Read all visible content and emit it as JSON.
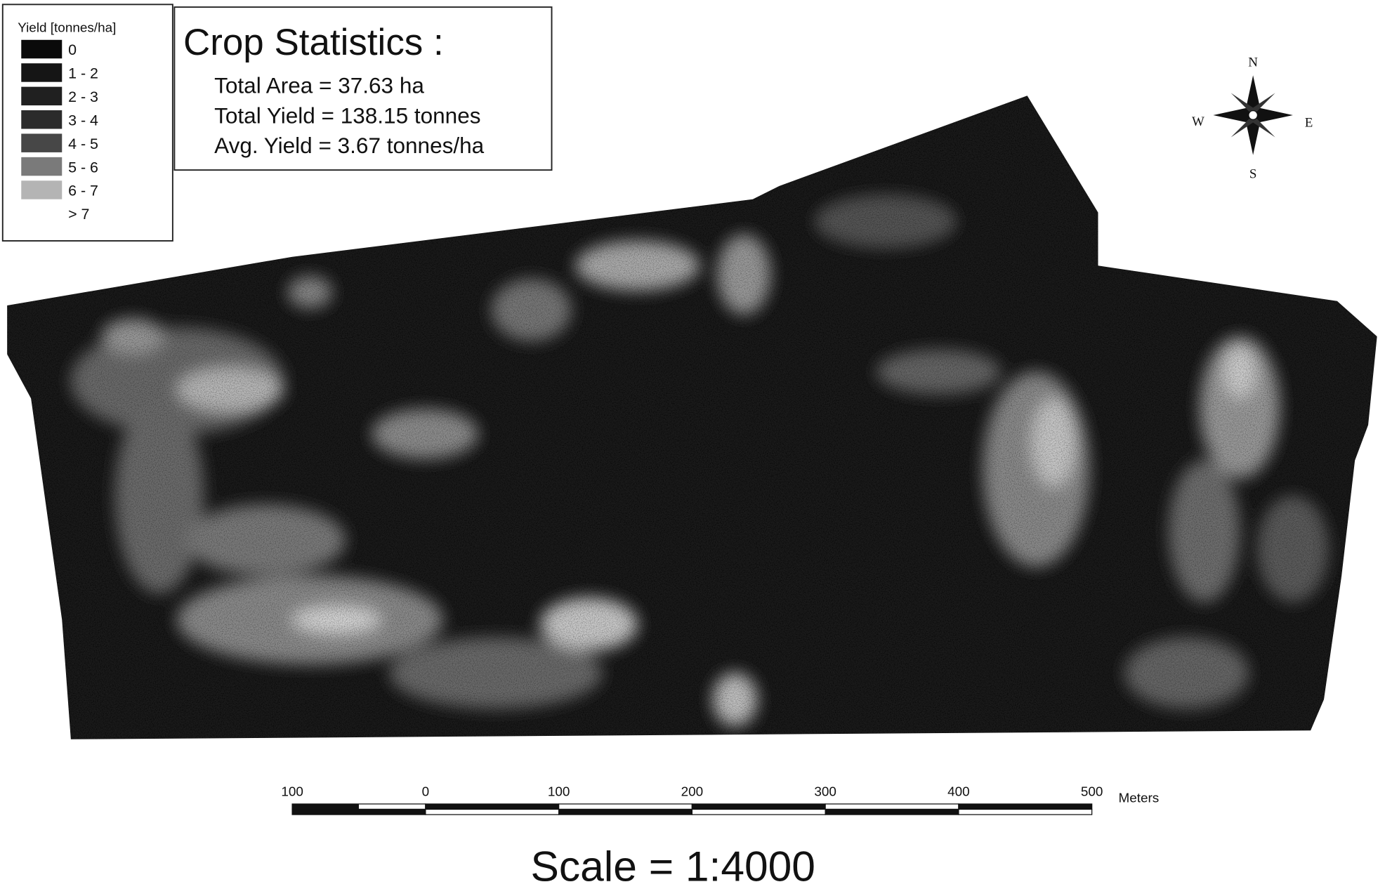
{
  "legend": {
    "title": "Yield [tonnes/ha]",
    "items": [
      "0",
      "1 - 2",
      "2 - 3",
      "3 - 4",
      "4 - 5",
      "5 - 6",
      "6 - 7",
      "> 7"
    ]
  },
  "statistics": {
    "title": "Crop Statistics :",
    "lines": [
      "Total Area = 37.63 ha",
      "Total Yield = 138.15 tonnes",
      "Avg. Yield  = 3.67 tonnes/ha"
    ]
  },
  "compass": {
    "north": "N",
    "south": "S",
    "east": "E",
    "west": "W"
  },
  "scale_bar": {
    "labels": [
      "100",
      "0",
      "100",
      "200",
      "300",
      "400",
      "500"
    ],
    "unit": "Meters"
  },
  "scale": "Scale  = 1:4000"
}
